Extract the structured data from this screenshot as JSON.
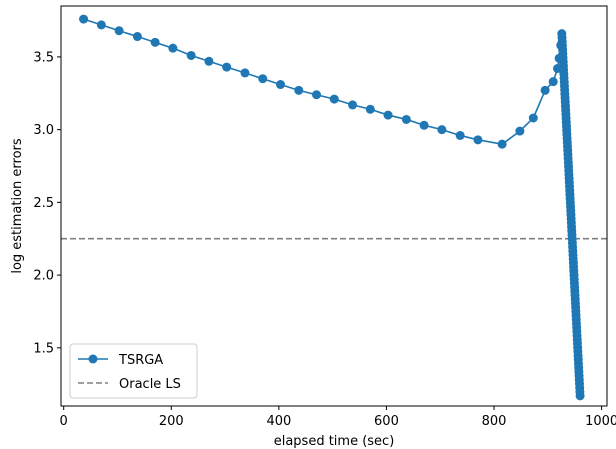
{
  "chart_data": {
    "type": "line",
    "title": "",
    "xlabel": "elapsed time (sec)",
    "ylabel": "log estimation errors",
    "xlim": [
      -5,
      1010
    ],
    "ylim": [
      1.1,
      3.85
    ],
    "xticks": [
      0,
      200,
      400,
      600,
      800,
      1000
    ],
    "yticks": [
      1.5,
      2.0,
      2.5,
      3.0,
      3.5
    ],
    "xtick_labels": [
      "0",
      "200",
      "400",
      "600",
      "800",
      "1000"
    ],
    "ytick_labels": [
      "1.5",
      "2.0",
      "2.5",
      "3.0",
      "3.5"
    ],
    "grid": false,
    "legend": "lower-left",
    "colors": {
      "tsrga": "#1f77b4",
      "oracle": "#808080"
    },
    "series": [
      {
        "name": "TSRGA",
        "style": "line-marker",
        "points": [
          [
            37,
            3.76
          ],
          [
            70,
            3.72
          ],
          [
            103,
            3.68
          ],
          [
            137,
            3.64
          ],
          [
            170,
            3.6
          ],
          [
            203,
            3.56
          ],
          [
            237,
            3.51
          ],
          [
            270,
            3.47
          ],
          [
            303,
            3.43
          ],
          [
            337,
            3.39
          ],
          [
            370,
            3.35
          ],
          [
            403,
            3.31
          ],
          [
            437,
            3.27
          ],
          [
            470,
            3.24
          ],
          [
            503,
            3.21
          ],
          [
            537,
            3.17
          ],
          [
            570,
            3.14
          ],
          [
            603,
            3.1
          ],
          [
            637,
            3.07
          ],
          [
            670,
            3.03
          ],
          [
            703,
            3.0
          ],
          [
            737,
            2.96
          ],
          [
            770,
            2.93
          ],
          [
            815,
            2.9
          ],
          [
            848,
            2.99
          ],
          [
            873,
            3.08
          ],
          [
            895,
            3.27
          ],
          [
            910,
            3.33
          ],
          [
            918,
            3.42
          ],
          [
            921,
            3.49
          ],
          [
            924,
            3.58
          ],
          [
            926,
            3.66
          ]
        ],
        "descent": {
          "x_start": 926,
          "x_end": 960,
          "y_start": 3.66,
          "y_end": 1.17,
          "n_points": 90
        }
      },
      {
        "name": "Oracle LS",
        "style": "dashed-hline",
        "y": 2.25
      }
    ]
  }
}
